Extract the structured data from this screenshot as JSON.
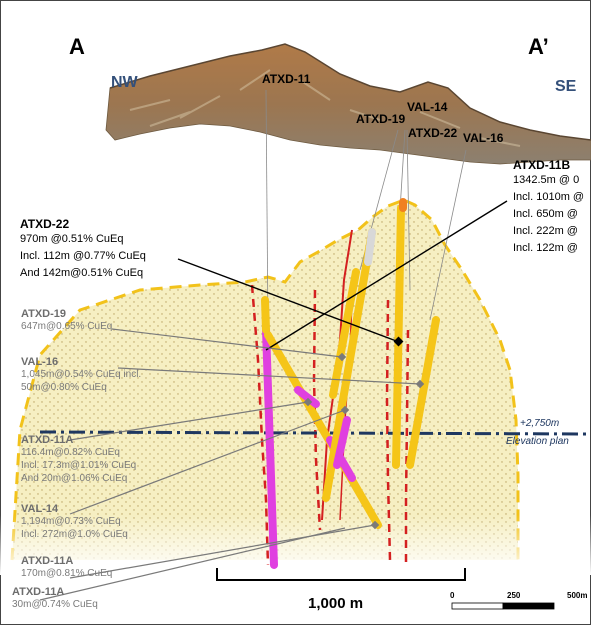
{
  "section_ends": {
    "left": "A",
    "right": "A’"
  },
  "orientation": {
    "left": "NW",
    "right": "SE"
  },
  "collars": [
    "ATXD-11",
    "VAL-14",
    "ATXD-19",
    "ATXD-22",
    "VAL-16"
  ],
  "callouts": {
    "atxd_11b": {
      "name": "ATXD-11B",
      "lines": [
        "1342.5m @ 0",
        "Incl. 1010m @",
        "Incl. 650m @",
        "Incl. 222m @",
        "Incl. 122m @"
      ]
    },
    "atxd_22": {
      "name": "ATXD-22",
      "lines": [
        "970m @0.51% CuEq",
        "Incl. 112m @0.77% CuEq",
        "And 142m@0.51% CuEq"
      ]
    },
    "atxd_19": {
      "name": "ATXD-19",
      "lines": [
        "647m@0.65% CuEq"
      ]
    },
    "val_16": {
      "name": "VAL-16",
      "lines": [
        "1,045m@0.54% CuEq incl.",
        "50m@0.80% CuEq"
      ]
    },
    "atxd_11a_1": {
      "name": "ATXD-11A",
      "lines": [
        "116.4m@0.82% CuEq",
        "Incl. 17.3m@1.01% CuEq",
        "And 20m@1.06% CuEq"
      ]
    },
    "val_14": {
      "name": "VAL-14",
      "lines": [
        "1,194m@0.73% CuEq",
        "Incl.  272m@1.0% CuEq"
      ]
    },
    "atxd_11a_2": {
      "name": "ATXD-11A",
      "lines": [
        "170m@0.81% CuEq"
      ]
    },
    "atxd_11a_3": {
      "name": "ATXD-11A",
      "lines": [
        "30m@0.74% CuEq"
      ]
    }
  },
  "elevation": {
    "value": "+2,750m",
    "label": "Elevation plan"
  },
  "scale_bar": {
    "label": "1,000 m"
  },
  "scale_ruler": {
    "ticks": [
      "0",
      "250",
      "500m"
    ]
  },
  "colors": {
    "envelope_fill": "#f6efc2",
    "envelope_outline": "#f2c21a",
    "drillhole_yellow": "#f5c518",
    "high_grade_magenta": "#e040e0",
    "fault_red": "#d42020",
    "elevation_line": "#1e3760",
    "direction_text": "#34507a"
  }
}
